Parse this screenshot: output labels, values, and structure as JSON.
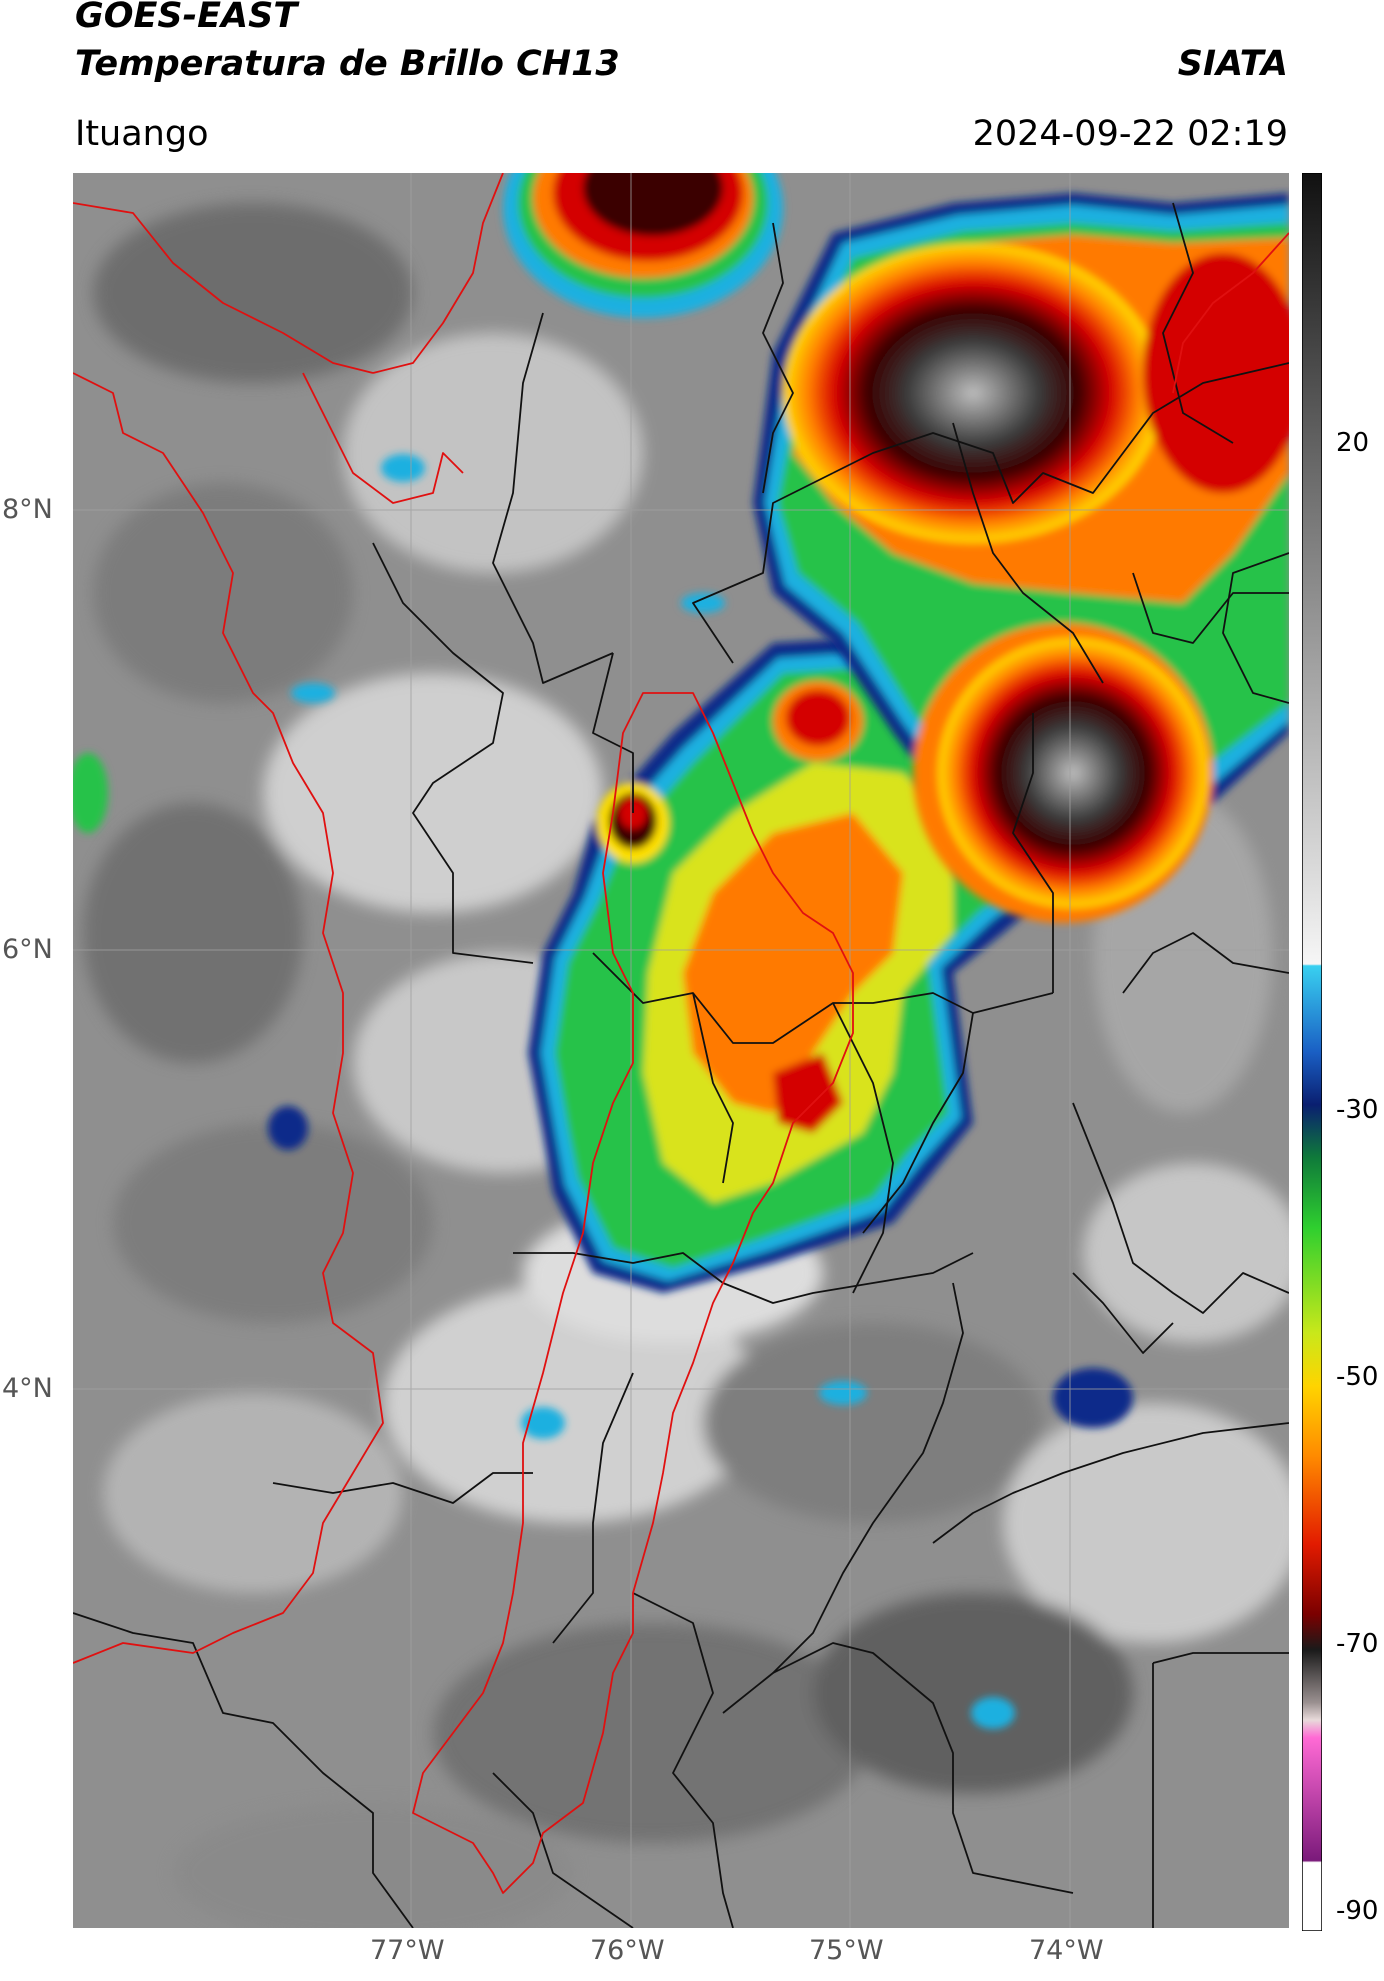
{
  "header": {
    "line1": "GOES-EAST",
    "line2": "Temperatura de Brillo CH13",
    "brand": "SIATA",
    "place": "Ituango",
    "timestamp": "2024-09-22 02:19"
  },
  "axes": {
    "lat_labels": [
      "8°N",
      "6°N",
      "4°N"
    ],
    "lon_labels": [
      "77°W",
      "76°W",
      "75°W",
      "74°W"
    ]
  },
  "colorbar": {
    "ticks": [
      "20",
      "-30",
      "-50",
      "-70",
      "-90"
    ],
    "range": [
      -90,
      40
    ]
  },
  "colors": {
    "border_country": "#e01010",
    "border_dept": "#111111",
    "cold_cloud": [
      "#0c2a8a",
      "#1fb0e0",
      "#25c24a",
      "#d9e31a",
      "#ff7a00",
      "#d40000",
      "#3a0000",
      "#2a2a2a"
    ]
  }
}
